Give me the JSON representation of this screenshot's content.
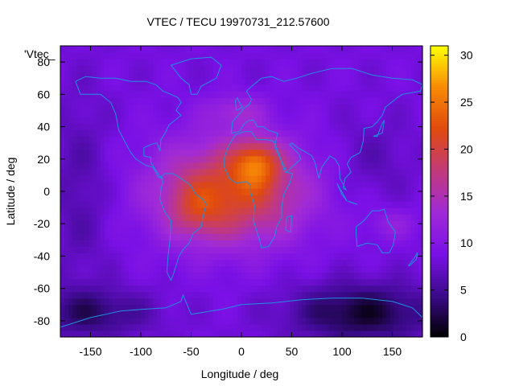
{
  "chart_data": {
    "type": "heatmap",
    "title": "VTEC / TECU 19970731_212.57600",
    "xlabel": "Longitude / deg",
    "ylabel": "Latitude / deg",
    "xlim": [
      -180,
      180
    ],
    "ylim": [
      -90,
      90
    ],
    "x_ticks": [
      -150,
      -100,
      -50,
      0,
      50,
      100,
      150
    ],
    "y_ticks": [
      -80,
      -60,
      -40,
      -20,
      0,
      20,
      40,
      60,
      80
    ],
    "colorbar": {
      "min": 0,
      "max": 31,
      "ticks": [
        0,
        5,
        10,
        15,
        20,
        25,
        30
      ]
    },
    "legend_key": "'Vtec_",
    "grid": false,
    "colormap": [
      "#000000",
      "#3a0a8a",
      "#7a10e6",
      "#a02ad8",
      "#c23a7a",
      "#e04a0e",
      "#f88a06",
      "#ffff00"
    ],
    "coastline_color": "#1e90e0",
    "features": {
      "background_vtec": 9,
      "peak_vtec": 30,
      "peak_location": {
        "lon": 15,
        "lat": 18
      },
      "low_region": {
        "lon": [
          60,
          180
        ],
        "lat": [
          -90,
          -50
        ]
      }
    }
  }
}
